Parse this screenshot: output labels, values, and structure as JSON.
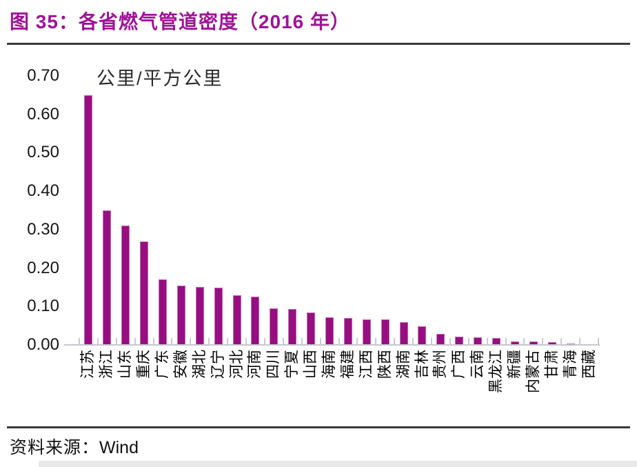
{
  "header": {
    "figure_title": "图 35：各省燃气管道密度（2016 年）"
  },
  "chart_data": {
    "type": "bar",
    "title": "各省燃气管道密度（2016 年）",
    "unit_label": "公里/平方公里",
    "xlabel": "",
    "ylabel": "公里/平方公里",
    "ylim": [
      0,
      0.7
    ],
    "grid": "off",
    "legend": "none",
    "bar_color": "#970E81",
    "y_tick_labels": [
      "0.70",
      "0.60",
      "0.50",
      "0.40",
      "0.30",
      "0.20",
      "0.10",
      "0.00"
    ],
    "categories": [
      "江苏",
      "浙江",
      "山东",
      "重庆",
      "广东",
      "安徽",
      "湖北",
      "辽宁",
      "河北",
      "河南",
      "四川",
      "宁夏",
      "山西",
      "海南",
      "福建",
      "江西",
      "陕西",
      "湖南",
      "吉林",
      "贵州",
      "广西",
      "云南",
      "黑龙江",
      "新疆",
      "内蒙古",
      "甘肃",
      "青海",
      "西藏"
    ],
    "values": [
      0.65,
      0.35,
      0.31,
      0.27,
      0.17,
      0.155,
      0.151,
      0.149,
      0.13,
      0.125,
      0.096,
      0.094,
      0.085,
      0.072,
      0.07,
      0.067,
      0.066,
      0.059,
      0.048,
      0.028,
      0.021,
      0.02,
      0.018,
      0.009,
      0.009,
      0.008,
      0.004,
      0.002
    ]
  },
  "footer": {
    "source_label": "资料来源：",
    "source_value": "Wind"
  },
  "colors": {
    "title_color": "#A0129A",
    "bar_color": "#970E81",
    "rule_color": "#3a3a3c",
    "axis_color": "#c6c6cf"
  }
}
